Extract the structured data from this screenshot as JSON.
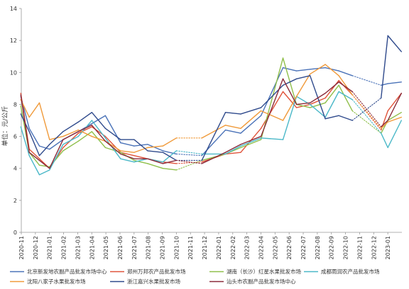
{
  "chart_data": {
    "type": "line",
    "ylabel": "单位：元/公斤",
    "ylim": [
      0,
      14
    ],
    "yticks": [
      "0",
      "2",
      "4",
      "6",
      "8",
      "10",
      "12",
      "14"
    ],
    "x_ticks": [
      "2020-11",
      "2020-12",
      "2021-01",
      "2021-02",
      "2021-03",
      "2021-04",
      "2021-05",
      "2021-06",
      "2021-07",
      "2021-08",
      "2021-09",
      "2021-10",
      "2021-11",
      "2021-12",
      "2022-01",
      "2022-02",
      "2022-03",
      "2022-04",
      "2022-05",
      "2022-06",
      "2022-07",
      "2022-08",
      "2022-09",
      "2022-10",
      "2022-11",
      "2022-12",
      "2023-01"
    ],
    "x_start": 2020.833,
    "x_end": 2023.083,
    "legend_position": "bottom",
    "series": [
      {
        "name": "北京新发地农副产品批发市场中心",
        "color": "#4a72b8",
        "points": [
          [
            2020.83,
            8.5
          ],
          [
            2020.88,
            6.5
          ],
          [
            2020.94,
            5.4
          ],
          [
            2021.0,
            5.2
          ],
          [
            2021.08,
            5.8
          ],
          [
            2021.17,
            6.3
          ],
          [
            2021.25,
            6.8
          ],
          [
            2021.33,
            7.3
          ],
          [
            2021.42,
            5.6
          ],
          [
            2021.5,
            5.4
          ],
          [
            2021.58,
            5.5
          ],
          [
            2021.67,
            5.1
          ],
          [
            2021.75,
            4.9
          ],
          [
            2021.9,
            4.8
          ],
          [
            2022.04,
            6.4
          ],
          [
            2022.13,
            6.2
          ],
          [
            2022.25,
            7.3
          ],
          [
            2022.38,
            10.3
          ],
          [
            2022.46,
            10.1
          ],
          [
            2022.54,
            10.2
          ],
          [
            2022.63,
            10.3
          ],
          [
            2022.71,
            10.1
          ],
          [
            2022.79,
            9.8
          ],
          [
            2022.96,
            9.2
          ],
          [
            2023.0,
            9.3
          ],
          [
            2023.08,
            9.4
          ]
        ],
        "gaps": [
          [
            2021.75,
            2021.9
          ],
          [
            2022.79,
            2022.96
          ]
        ]
      },
      {
        "name": "郑州万邦农产品批发市场",
        "color": "#e0533a",
        "points": [
          [
            2020.83,
            8.7
          ],
          [
            2020.88,
            5.2
          ],
          [
            2020.94,
            4.6
          ],
          [
            2021.0,
            4.0
          ],
          [
            2021.08,
            5.3
          ],
          [
            2021.17,
            6.2
          ],
          [
            2021.25,
            6.6
          ],
          [
            2021.33,
            6.0
          ],
          [
            2021.42,
            5.0
          ],
          [
            2021.5,
            4.8
          ],
          [
            2021.58,
            4.6
          ],
          [
            2021.67,
            4.4
          ],
          [
            2021.75,
            4.3
          ],
          [
            2021.9,
            4.4
          ],
          [
            2022.04,
            4.9
          ],
          [
            2022.13,
            5.0
          ],
          [
            2022.25,
            6.5
          ],
          [
            2022.38,
            8.8
          ],
          [
            2022.46,
            7.8
          ],
          [
            2022.54,
            8.0
          ],
          [
            2022.63,
            8.4
          ],
          [
            2022.71,
            9.5
          ],
          [
            2022.79,
            8.6
          ],
          [
            2022.96,
            6.4
          ],
          [
            2023.0,
            7.6
          ],
          [
            2023.08,
            8.7
          ]
        ],
        "gaps": [
          [
            2021.75,
            2021.9
          ],
          [
            2022.79,
            2022.96
          ]
        ]
      },
      {
        "name": "湖南（长沙）红星水果批发市场",
        "color": "#8fbf4a",
        "points": [
          [
            2020.83,
            7.9
          ],
          [
            2020.88,
            5.0
          ],
          [
            2020.94,
            4.2
          ],
          [
            2021.0,
            4.1
          ],
          [
            2021.08,
            5.1
          ],
          [
            2021.17,
            5.7
          ],
          [
            2021.25,
            6.3
          ],
          [
            2021.33,
            5.3
          ],
          [
            2021.42,
            5.0
          ],
          [
            2021.5,
            4.5
          ],
          [
            2021.58,
            4.3
          ],
          [
            2021.67,
            4.0
          ],
          [
            2021.75,
            3.9
          ],
          [
            2021.9,
            4.5
          ],
          [
            2022.04,
            4.9
          ],
          [
            2022.13,
            5.3
          ],
          [
            2022.25,
            5.8
          ],
          [
            2022.38,
            10.9
          ],
          [
            2022.46,
            8.0
          ],
          [
            2022.54,
            7.8
          ],
          [
            2022.63,
            8.1
          ],
          [
            2022.71,
            9.2
          ],
          [
            2022.79,
            7.6
          ],
          [
            2022.96,
            6.2
          ],
          [
            2023.0,
            7.0
          ],
          [
            2023.08,
            7.5
          ]
        ],
        "gaps": [
          [
            2021.75,
            2021.9
          ],
          [
            2022.79,
            2022.96
          ]
        ]
      },
      {
        "name": "成都雨润农产品批发市场",
        "color": "#4ab8c8",
        "points": [
          [
            2020.83,
            6.6
          ],
          [
            2020.88,
            4.8
          ],
          [
            2020.94,
            3.6
          ],
          [
            2021.0,
            3.9
          ],
          [
            2021.08,
            5.5
          ],
          [
            2021.17,
            6.0
          ],
          [
            2021.25,
            7.0
          ],
          [
            2021.33,
            5.9
          ],
          [
            2021.42,
            4.6
          ],
          [
            2021.5,
            4.4
          ],
          [
            2021.58,
            4.6
          ],
          [
            2021.67,
            4.4
          ],
          [
            2021.75,
            5.1
          ],
          [
            2021.9,
            4.9
          ],
          [
            2022.04,
            4.9
          ],
          [
            2022.13,
            5.4
          ],
          [
            2022.25,
            5.9
          ],
          [
            2022.38,
            5.8
          ],
          [
            2022.46,
            8.5
          ],
          [
            2022.54,
            8.0
          ],
          [
            2022.63,
            7.2
          ],
          [
            2022.71,
            8.8
          ],
          [
            2022.79,
            8.3
          ],
          [
            2022.96,
            6.2
          ],
          [
            2023.0,
            5.3
          ],
          [
            2023.08,
            7.0
          ]
        ],
        "gaps": [
          [
            2021.75,
            2021.9
          ],
          [
            2022.79,
            2022.96
          ]
        ]
      },
      {
        "name": "沈阳八家子水果批发市场",
        "color": "#f09a3a",
        "points": [
          [
            2020.83,
            8.3
          ],
          [
            2020.88,
            7.2
          ],
          [
            2020.94,
            8.1
          ],
          [
            2021.0,
            5.8
          ],
          [
            2021.08,
            6.0
          ],
          [
            2021.17,
            6.4
          ],
          [
            2021.25,
            6.0
          ],
          [
            2021.33,
            5.7
          ],
          [
            2021.42,
            5.1
          ],
          [
            2021.5,
            5.0
          ],
          [
            2021.58,
            5.3
          ],
          [
            2021.67,
            5.4
          ],
          [
            2021.75,
            5.9
          ],
          [
            2021.9,
            5.9
          ],
          [
            2022.04,
            6.7
          ],
          [
            2022.13,
            6.5
          ],
          [
            2022.25,
            7.6
          ],
          [
            2022.38,
            7.0
          ],
          [
            2022.46,
            8.5
          ],
          [
            2022.54,
            9.9
          ],
          [
            2022.63,
            10.5
          ],
          [
            2022.71,
            9.8
          ],
          [
            2022.79,
            8.6
          ],
          [
            2022.96,
            6.5
          ],
          [
            2023.0,
            6.9
          ],
          [
            2023.08,
            7.2
          ]
        ],
        "gaps": [
          [
            2021.75,
            2021.9
          ],
          [
            2022.79,
            2022.96
          ]
        ]
      },
      {
        "name": "浙江嘉兴水果批发市场",
        "color": "#2f4a8c",
        "points": [
          [
            2020.83,
            7.4
          ],
          [
            2020.88,
            6.3
          ],
          [
            2020.94,
            4.8
          ],
          [
            2021.0,
            5.5
          ],
          [
            2021.08,
            6.3
          ],
          [
            2021.17,
            6.9
          ],
          [
            2021.25,
            7.5
          ],
          [
            2021.33,
            6.5
          ],
          [
            2021.42,
            5.8
          ],
          [
            2021.5,
            5.8
          ],
          [
            2021.58,
            5.1
          ],
          [
            2021.67,
            5.0
          ],
          [
            2021.75,
            4.5
          ],
          [
            2021.9,
            4.5
          ],
          [
            2022.04,
            7.5
          ],
          [
            2022.13,
            7.4
          ],
          [
            2022.25,
            7.8
          ],
          [
            2022.38,
            9.2
          ],
          [
            2022.46,
            9.6
          ],
          [
            2022.54,
            9.8
          ],
          [
            2022.63,
            7.1
          ],
          [
            2022.71,
            7.3
          ],
          [
            2022.79,
            7.0
          ],
          [
            2022.96,
            8.4
          ],
          [
            2023.0,
            12.3
          ],
          [
            2023.08,
            11.3
          ]
        ],
        "gaps": [
          [
            2021.75,
            2021.9
          ],
          [
            2022.79,
            2022.96
          ]
        ]
      },
      {
        "name": "汕头市农副产品批发市场中心",
        "color": "#8a2a3a",
        "points": [
          [
            2020.83,
            8.6
          ],
          [
            2020.88,
            5.0
          ],
          [
            2020.94,
            4.5
          ],
          [
            2021.0,
            4.0
          ],
          [
            2021.08,
            5.8
          ],
          [
            2021.17,
            6.3
          ],
          [
            2021.25,
            6.7
          ],
          [
            2021.33,
            5.7
          ],
          [
            2021.42,
            4.9
          ],
          [
            2021.5,
            4.6
          ],
          [
            2021.58,
            4.6
          ],
          [
            2021.67,
            4.3
          ],
          [
            2021.75,
            4.5
          ],
          [
            2021.9,
            4.3
          ],
          [
            2022.04,
            5.0
          ],
          [
            2022.13,
            5.5
          ],
          [
            2022.25,
            6.0
          ],
          [
            2022.38,
            9.6
          ],
          [
            2022.46,
            8.0
          ],
          [
            2022.54,
            8.1
          ],
          [
            2022.63,
            8.7
          ],
          [
            2022.71,
            9.4
          ],
          [
            2022.79,
            8.8
          ],
          [
            2022.96,
            6.6
          ],
          [
            2023.0,
            7.0
          ],
          [
            2023.08,
            8.7
          ]
        ],
        "gaps": [
          [
            2021.75,
            2021.9
          ],
          [
            2022.79,
            2022.96
          ]
        ]
      }
    ]
  }
}
